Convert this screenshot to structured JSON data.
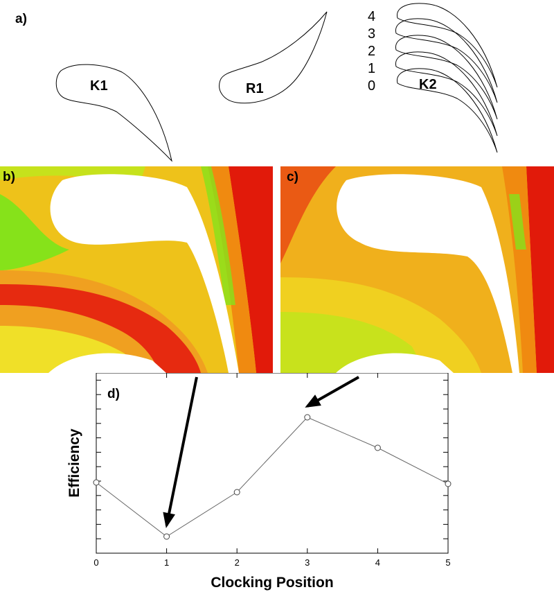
{
  "panel_labels": {
    "a": "a)",
    "b": "b)",
    "c": "c)",
    "d": "d)"
  },
  "blades": {
    "k1": "K1",
    "r1": "R1",
    "k2": "K2"
  },
  "clocking_positions": [
    "4",
    "3",
    "2",
    "1",
    "0"
  ],
  "colors": {
    "red": "#e11a0a",
    "orange": "#f08a10",
    "yellow": "#f2ee1c",
    "green": "#86e21a",
    "line": "#666666"
  },
  "chart_data": {
    "type": "line",
    "xlabel": "Clocking Position",
    "ylabel": "Efficiency",
    "x": [
      0,
      1,
      2,
      3,
      4,
      5
    ],
    "x_ticks": [
      "0",
      "1",
      "2",
      "3",
      "4",
      "5"
    ],
    "xlim": [
      0,
      5
    ],
    "y_tick_labels_shown": false,
    "series": [
      {
        "values": [
          0.46,
          0.07,
          0.39,
          0.93,
          0.71,
          0.45
        ]
      }
    ],
    "ylim": [
      0,
      1
    ],
    "markers": "open-circle",
    "annotations": [
      {
        "type": "arrow",
        "target_x": 1,
        "target_value": 0.07
      },
      {
        "type": "arrow",
        "target_x": 3,
        "target_value": 0.93
      }
    ]
  }
}
